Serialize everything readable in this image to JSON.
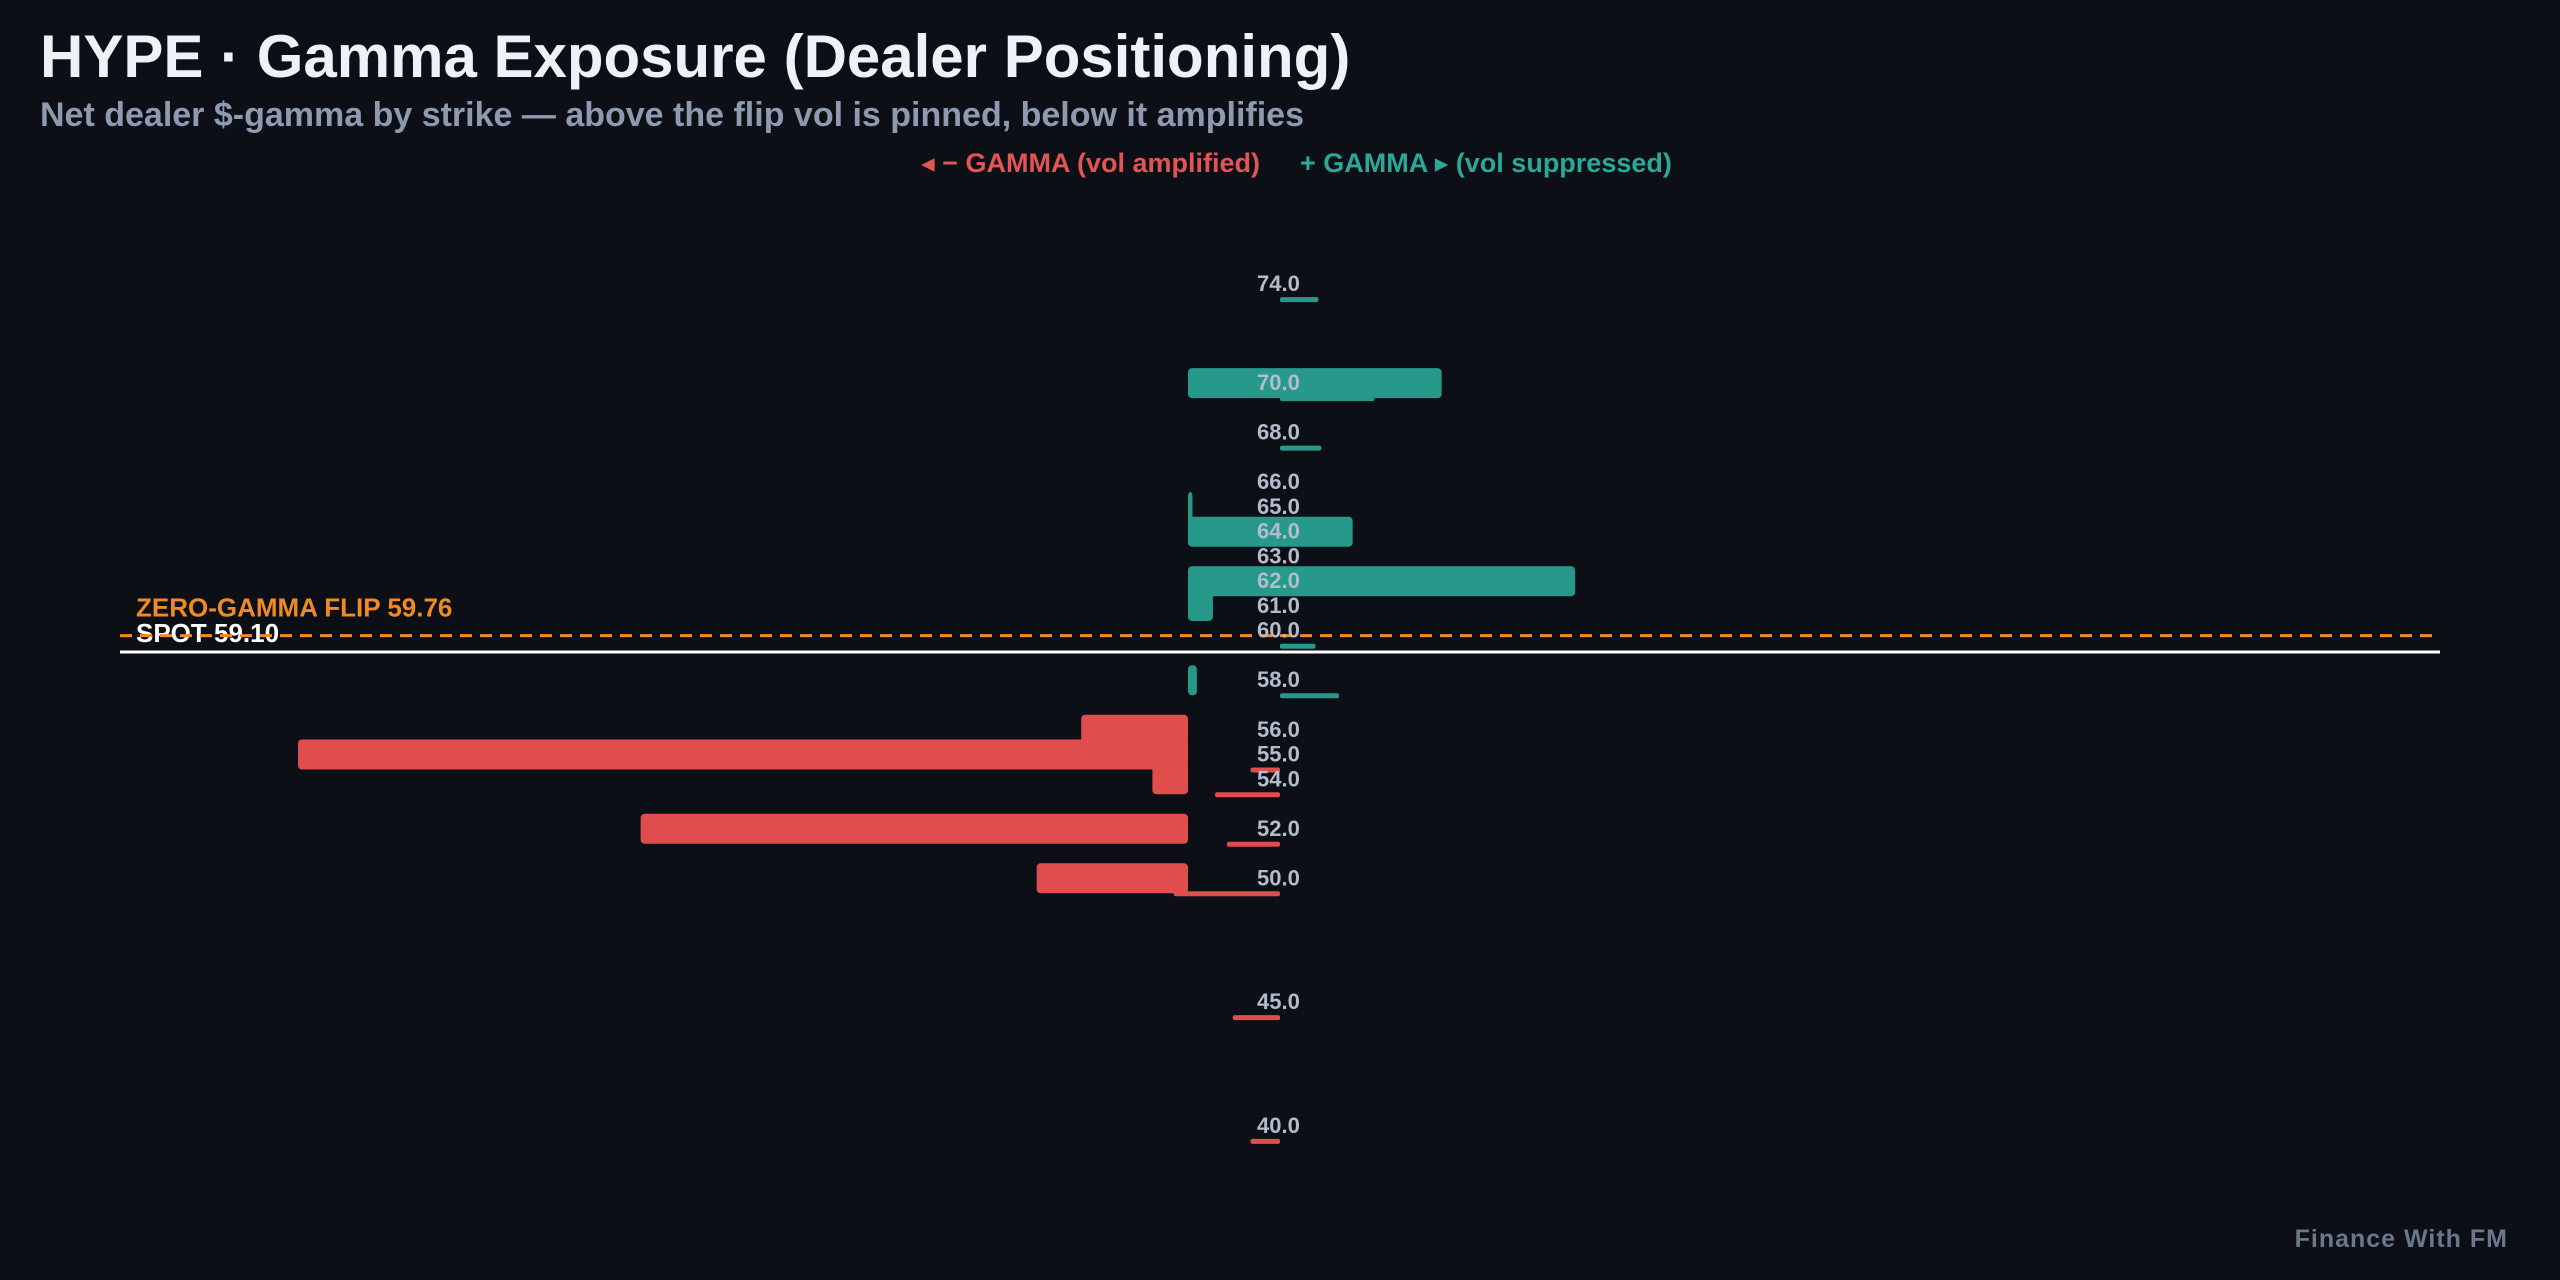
{
  "header": {
    "title": "HYPE · Gamma Exposure (Dealer Positioning)",
    "subtitle": "Net dealer $-gamma by strike — above the flip vol is pinned, below it amplifies"
  },
  "legend": {
    "negative_label": "◂ − GAMMA (vol amplified)",
    "positive_label": "+ GAMMA ▸ (vol suppressed)"
  },
  "watermark": "Finance With FM",
  "colors": {
    "negative": "#e04d4d",
    "positive": "#26998b",
    "flip": "#f08a24",
    "spot": "#ffffff",
    "background": "#0c0f16"
  },
  "chart_data": {
    "type": "bar",
    "orientation": "horizontal",
    "scale": "relative net dealer gamma (sign indicates direction)",
    "xlim": [
      -1,
      0.5
    ],
    "ylim": [
      38.5,
      75.5
    ],
    "strikes": [
      {
        "label": "74.0",
        "strike": 74,
        "main": 0,
        "secondary": 0.065
      },
      {
        "label": "70.0",
        "strike": 70,
        "main": 0.285,
        "secondary": 0.16
      },
      {
        "label": "68.0",
        "strike": 68,
        "main": 0,
        "secondary": 0.07
      },
      {
        "label": "66.0",
        "strike": 66,
        "main": 0,
        "secondary": 0
      },
      {
        "label": "65.0",
        "strike": 65,
        "main": 0.005,
        "secondary": 0
      },
      {
        "label": "64.0",
        "strike": 64,
        "main": 0.185,
        "secondary": 0
      },
      {
        "label": "63.0",
        "strike": 63,
        "main": 0,
        "secondary": 0
      },
      {
        "label": "62.0",
        "strike": 62,
        "main": 0.435,
        "secondary": 0
      },
      {
        "label": "61.0",
        "strike": 61,
        "main": 0.028,
        "secondary": 0
      },
      {
        "label": "60.0",
        "strike": 60,
        "main": 0,
        "secondary": 0.06
      },
      {
        "label": "58.0",
        "strike": 58,
        "main": 0.01,
        "secondary": 0.1
      },
      {
        "label": "56.0",
        "strike": 56,
        "main": -0.12,
        "secondary": 0
      },
      {
        "label": "55.0",
        "strike": 55,
        "main": -1.0,
        "secondary": -0.05
      },
      {
        "label": "54.0",
        "strike": 54,
        "main": -0.04,
        "secondary": -0.11
      },
      {
        "label": "52.0",
        "strike": 52,
        "main": -0.615,
        "secondary": -0.09
      },
      {
        "label": "50.0",
        "strike": 50,
        "main": -0.17,
        "secondary": -0.18
      },
      {
        "label": "45.0",
        "strike": 45,
        "main": 0,
        "secondary": -0.08
      },
      {
        "label": "40.0",
        "strike": 40,
        "main": 0,
        "secondary": -0.05
      }
    ],
    "flip": {
      "value": 59.76,
      "label": "ZERO-GAMMA FLIP 59.76"
    },
    "spot": {
      "value": 59.1,
      "label": "SPOT 59.10"
    }
  }
}
